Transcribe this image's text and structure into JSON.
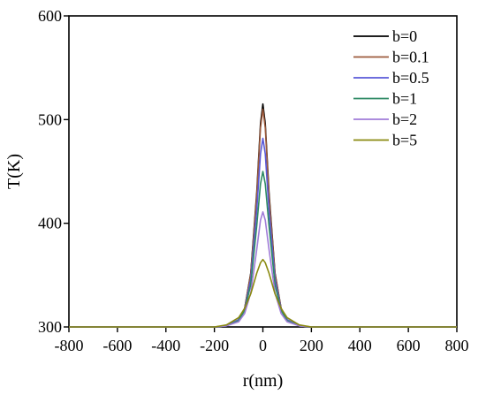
{
  "chart_data": {
    "type": "line",
    "title": "",
    "xlabel": "r(nm)",
    "ylabel": "T(K)",
    "xlim": [
      -800,
      800
    ],
    "ylim": [
      300,
      600
    ],
    "xticks": [
      "-800",
      "-600",
      "-400",
      "-200",
      "0",
      "200",
      "400",
      "600",
      "800"
    ],
    "yticks": [
      "300",
      "400",
      "500",
      "600"
    ],
    "grid": false,
    "legend_position": "top-right",
    "series": [
      {
        "name": "b=0",
        "color": "#000000",
        "x": [
          -800,
          -200,
          -150,
          -100,
          -75,
          -50,
          -25,
          -10,
          0,
          10,
          25,
          50,
          75,
          100,
          150,
          200,
          800
        ],
        "y": [
          300,
          300,
          301,
          307,
          318,
          352,
          430,
          496,
          515,
          496,
          430,
          352,
          318,
          307,
          301,
          300,
          300
        ]
      },
      {
        "name": "b=0.1",
        "color": "#9c5a3c",
        "x": [
          -800,
          -200,
          -150,
          -100,
          -75,
          -50,
          -25,
          -10,
          0,
          10,
          25,
          50,
          75,
          100,
          150,
          200,
          800
        ],
        "y": [
          300,
          300,
          301,
          307,
          318,
          351,
          427,
          492,
          510,
          492,
          427,
          351,
          318,
          307,
          301,
          300,
          300
        ]
      },
      {
        "name": "b=0.5",
        "color": "#5a5ad8",
        "x": [
          -800,
          -200,
          -150,
          -100,
          -75,
          -50,
          -25,
          -10,
          0,
          10,
          25,
          50,
          75,
          100,
          150,
          200,
          800
        ],
        "y": [
          300,
          300,
          301,
          307,
          317,
          346,
          413,
          467,
          482,
          467,
          413,
          346,
          317,
          307,
          301,
          300,
          300
        ]
      },
      {
        "name": "b=1",
        "color": "#2e8a64",
        "x": [
          -800,
          -200,
          -150,
          -100,
          -75,
          -50,
          -25,
          -10,
          0,
          10,
          25,
          50,
          75,
          100,
          150,
          200,
          800
        ],
        "y": [
          300,
          300,
          301,
          306,
          316,
          341,
          398,
          438,
          450,
          438,
          398,
          341,
          316,
          306,
          301,
          300,
          300
        ]
      },
      {
        "name": "b=2",
        "color": "#a07cd8",
        "x": [
          -800,
          -200,
          -150,
          -100,
          -75,
          -50,
          -25,
          -10,
          0,
          10,
          25,
          50,
          75,
          100,
          150,
          200,
          800
        ],
        "y": [
          300,
          300,
          301,
          305,
          313,
          333,
          375,
          403,
          411,
          403,
          375,
          333,
          313,
          305,
          301,
          300,
          300
        ]
      },
      {
        "name": "b=5",
        "color": "#8a8a10",
        "x": [
          -800,
          -200,
          -150,
          -100,
          -75,
          -50,
          -25,
          -10,
          0,
          10,
          25,
          50,
          75,
          100,
          150,
          200,
          800
        ],
        "y": [
          300,
          300,
          302,
          309,
          318,
          332,
          352,
          362,
          365,
          362,
          352,
          332,
          318,
          309,
          302,
          300,
          300
        ]
      }
    ]
  }
}
